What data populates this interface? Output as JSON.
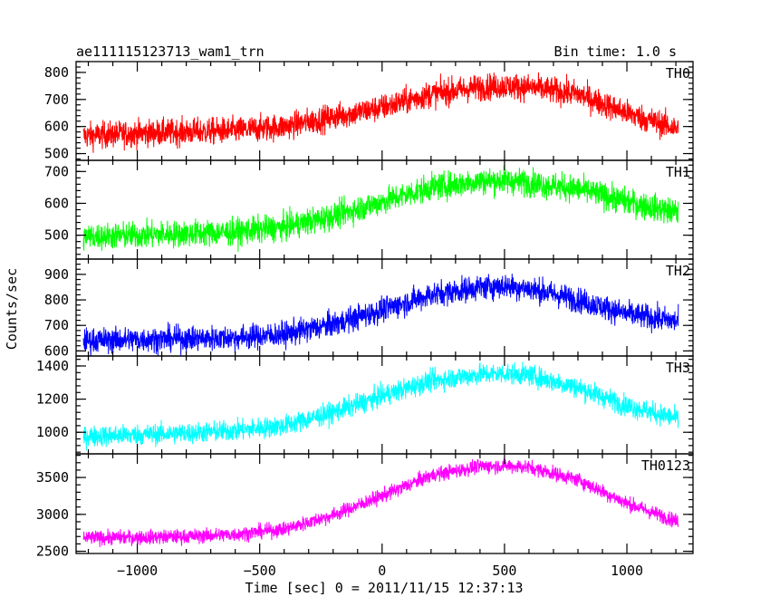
{
  "header": {
    "title": "ae111115123713_wam1_trn",
    "bin_time": "Bin time: 1.0 s"
  },
  "chart_data": {
    "type": "line",
    "title": "ae111115123713_wam1_trn",
    "subtitle": "Bin time: 1.0 s",
    "xlabel": "Time [sec] 0 = 2011/11/15 12:37:13",
    "ylabel": "Counts/sec",
    "xlim": [
      -1250,
      1270
    ],
    "x_ticks": [
      -1000,
      -500,
      0,
      500,
      1000
    ],
    "x_tick_labels": [
      "−1000",
      "−500",
      "0",
      "500",
      "1000"
    ],
    "grid": false,
    "panels": [
      {
        "name": "TH0",
        "color": "#ff0000",
        "ylim": [
          475,
          840
        ],
        "y_ticks": [
          500,
          600,
          700,
          800
        ],
        "x": [
          -1220,
          -1000,
          -800,
          -600,
          -400,
          -200,
          0,
          200,
          400,
          500,
          600,
          800,
          1000,
          1210
        ],
        "values": [
          565,
          575,
          580,
          585,
          600,
          635,
          670,
          720,
          745,
          750,
          745,
          720,
          650,
          590
        ],
        "noise": 35
      },
      {
        "name": "TH1",
        "color": "#00ff00",
        "ylim": [
          425,
          735
        ],
        "y_ticks": [
          500,
          600,
          700
        ],
        "x": [
          -1220,
          -1000,
          -800,
          -600,
          -400,
          -200,
          0,
          200,
          400,
          500,
          600,
          800,
          1000,
          1210
        ],
        "values": [
          495,
          500,
          505,
          510,
          525,
          560,
          605,
          650,
          670,
          672,
          665,
          645,
          605,
          570
        ],
        "noise": 30
      },
      {
        "name": "TH2",
        "color": "#0000ff",
        "ylim": [
          580,
          960
        ],
        "y_ticks": [
          600,
          700,
          800,
          900
        ],
        "x": [
          -1220,
          -1000,
          -800,
          -600,
          -400,
          -200,
          0,
          200,
          400,
          500,
          600,
          800,
          1000,
          1210
        ],
        "values": [
          640,
          645,
          648,
          652,
          665,
          705,
          760,
          820,
          850,
          855,
          845,
          800,
          745,
          715
        ],
        "noise": 35
      },
      {
        "name": "TH3",
        "color": "#00ffff",
        "ylim": [
          870,
          1460
        ],
        "y_ticks": [
          1000,
          1200,
          1400
        ],
        "x": [
          -1220,
          -1000,
          -800,
          -600,
          -400,
          -200,
          0,
          200,
          400,
          500,
          600,
          800,
          1000,
          1210
        ],
        "values": [
          975,
          985,
          995,
          1010,
          1040,
          1120,
          1220,
          1310,
          1350,
          1355,
          1345,
          1270,
          1160,
          1080
        ],
        "noise": 45
      },
      {
        "name": "TH0123",
        "color": "#ff00ff",
        "ylim": [
          2470,
          3820
        ],
        "y_ticks": [
          2500,
          3000,
          3500
        ],
        "x": [
          -1220,
          -1000,
          -800,
          -600,
          -400,
          -200,
          0,
          200,
          400,
          500,
          600,
          800,
          1000,
          1210
        ],
        "values": [
          2680,
          2690,
          2700,
          2730,
          2800,
          2990,
          3250,
          3530,
          3650,
          3660,
          3640,
          3470,
          3150,
          2900
        ],
        "noise": 70
      }
    ]
  }
}
